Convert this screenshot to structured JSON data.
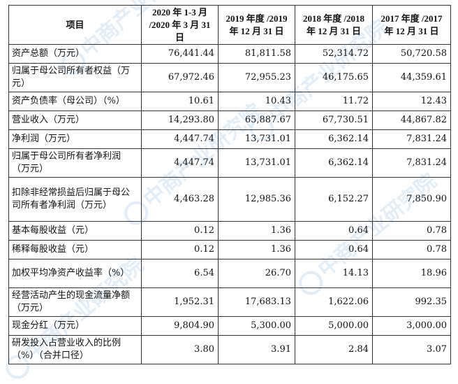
{
  "table": {
    "headers": [
      "项目",
      "2020 年 1-3 月 /2020 年 3 月 31 日",
      "2019 年度 /2019 年 12 月 31 日",
      "2018 年度 /2018 年 12 月 31 日",
      "2017 年度 /2017 年 12 月 31 日"
    ],
    "rows": [
      {
        "label": "资产总额（万元）",
        "values": [
          "76,441.44",
          "81,811.58",
          "52,314.72",
          "50,720.58"
        ]
      },
      {
        "label": "归属于母公司所有者权益（万元）",
        "values": [
          "67,972.46",
          "72,955.23",
          "46,175.65",
          "44,359.61"
        ]
      },
      {
        "label": "资产负债率（母公司）（%）",
        "values": [
          "10.61",
          "10.43",
          "11.72",
          "12.43"
        ]
      },
      {
        "label": "营业收入（万元）",
        "values": [
          "14,293.80",
          "65,887.67",
          "67,730.51",
          "44,867.82"
        ]
      },
      {
        "label": "净利润（万元）",
        "values": [
          "4,447.74",
          "13,731.01",
          "6,362.14",
          "7,831.24"
        ]
      },
      {
        "label": "归属于母公司所有者净利润（万元）",
        "values": [
          "4,447.74",
          "13,731.01",
          "6,362.14",
          "7,831.24"
        ]
      },
      {
        "label": "扣除非经常损益后归属于母公司所有者净利润（万元）",
        "values": [
          "4,463.28",
          "12,985.36",
          "6,152.27",
          "7,850.90"
        ]
      },
      {
        "label": "基本每股收益（元）",
        "values": [
          "0.12",
          "1.36",
          "0.64",
          "0.78"
        ]
      },
      {
        "label": "稀释每股收益（元）",
        "values": [
          "0.12",
          "1.36",
          "0.64",
          "0.78"
        ]
      },
      {
        "label": "加权平均净资产收益率（%）",
        "values": [
          "6.54",
          "26.70",
          "14.13",
          "18.96"
        ]
      },
      {
        "label": "经营活动产生的现金流量净额（万元）",
        "values": [
          "1,952.31",
          "17,683.13",
          "1,622.06",
          "992.35"
        ]
      },
      {
        "label": "现金分红（万元）",
        "values": [
          "9,804.90",
          "5,300.00",
          "5,000.00",
          "3,000.00"
        ]
      },
      {
        "label": "研发投入占营业收入的比例（%）（合并口径）",
        "values": [
          "3.80",
          "3.91",
          "2.84",
          "3.07"
        ]
      }
    ]
  },
  "watermark": {
    "text": "中商产业研究院"
  }
}
